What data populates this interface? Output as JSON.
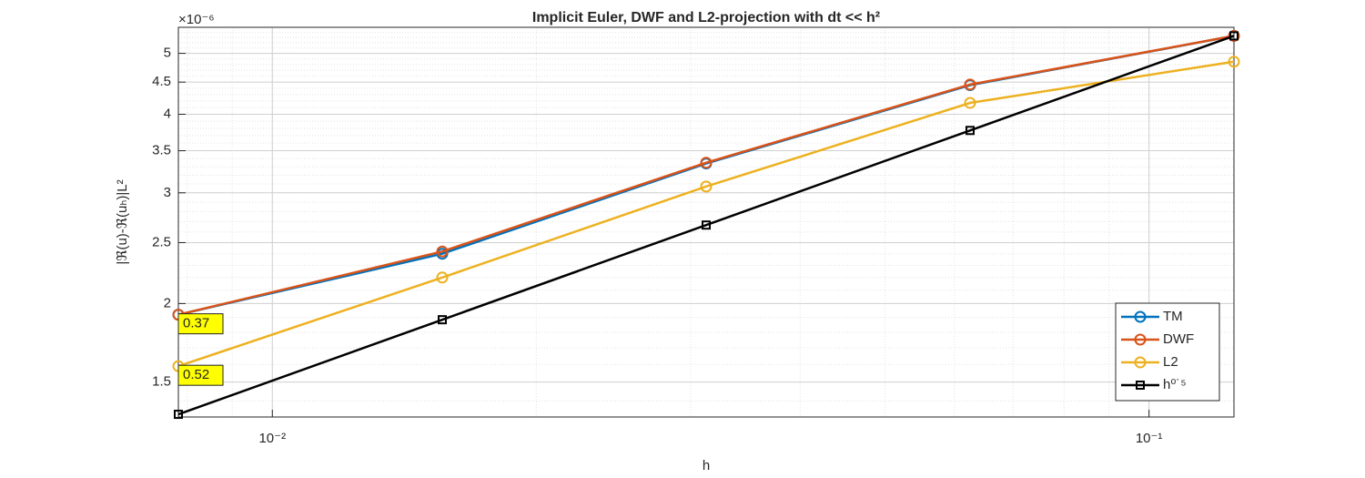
{
  "chart_data": {
    "type": "line",
    "title": "Implicit Euler, DWF and L2-projection with dt << h²",
    "x_label": "h",
    "y_label": "|ℜ(u)-ℜ(uₕ)|L²",
    "y_exponent_label": "×10⁻⁶",
    "x": [
      0.0078125,
      0.015625,
      0.03125,
      0.0625,
      0.125
    ],
    "xlim": [
      0.0078125,
      0.125
    ],
    "xticks": [
      {
        "value": 0.01,
        "label": "10⁻²"
      },
      {
        "value": 0.1,
        "label": "10⁻¹"
      }
    ],
    "ylim": [
      1.32,
      5.5
    ],
    "yticks": [
      1.5,
      2,
      2.5,
      3,
      3.5,
      4,
      4.5,
      5
    ],
    "xscale": "log",
    "yscale": "log",
    "grid": true,
    "legend": "lower right",
    "series": [
      {
        "name": "TM",
        "color": "#0072bd",
        "marker": "circle",
        "values": [
          1.92,
          2.4,
          3.34,
          4.45,
          5.33
        ]
      },
      {
        "name": "DWF",
        "color": "#d95319",
        "marker": "circle",
        "values": [
          1.92,
          2.42,
          3.35,
          4.46,
          5.33
        ]
      },
      {
        "name": "L2",
        "color": "#edb120",
        "marker": "circle",
        "values": [
          1.59,
          2.2,
          3.07,
          4.17,
          4.85
        ]
      },
      {
        "name": "h⁰˙⁵",
        "color": "#000000",
        "marker": "square",
        "values": [
          1.333,
          1.885,
          2.666,
          3.77,
          5.33
        ]
      }
    ],
    "annotations": [
      "0.37",
      "0.52"
    ]
  }
}
